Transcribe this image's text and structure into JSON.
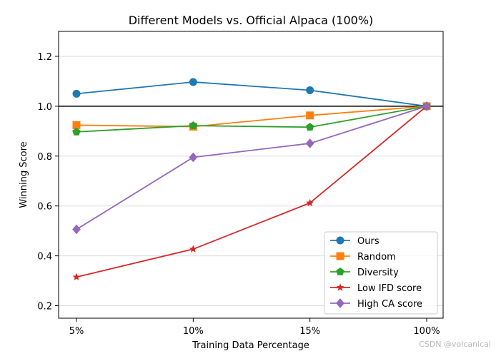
{
  "chart_data": {
    "type": "line",
    "title": "Different Models vs. Official Alpaca (100%)",
    "xlabel": "Training Data Percentage",
    "ylabel": "Winning Score",
    "categories": [
      "5%",
      "10%",
      "15%",
      "100%"
    ],
    "ylim": [
      0.15,
      1.3
    ],
    "yticks": [
      0.2,
      0.4,
      0.6,
      0.8,
      1.0,
      1.2
    ],
    "ytick_labels": [
      "0.2",
      "0.4",
      "0.6",
      "0.8",
      "1.0",
      "1.2"
    ],
    "grid": "horizontal",
    "reference_line": 1.0,
    "legend_position": "lower-right",
    "series": [
      {
        "name": "Ours",
        "color": "#1f77b4",
        "marker": "circle",
        "values": [
          1.05,
          1.097,
          1.064,
          1.0
        ]
      },
      {
        "name": "Random",
        "color": "#ff7f0e",
        "marker": "square",
        "values": [
          0.924,
          0.918,
          0.963,
          1.0
        ]
      },
      {
        "name": "Diversity",
        "color": "#2ca02c",
        "marker": "pentagon",
        "values": [
          0.897,
          0.922,
          0.916,
          1.0
        ]
      },
      {
        "name": "Low IFD score",
        "color": "#d62728",
        "marker": "star",
        "values": [
          0.315,
          0.427,
          0.612,
          1.0
        ]
      },
      {
        "name": "High CA score",
        "color": "#9467bd",
        "marker": "diamond",
        "values": [
          0.506,
          0.795,
          0.851,
          1.0
        ]
      }
    ]
  },
  "watermark": "CSDN @volcanical"
}
